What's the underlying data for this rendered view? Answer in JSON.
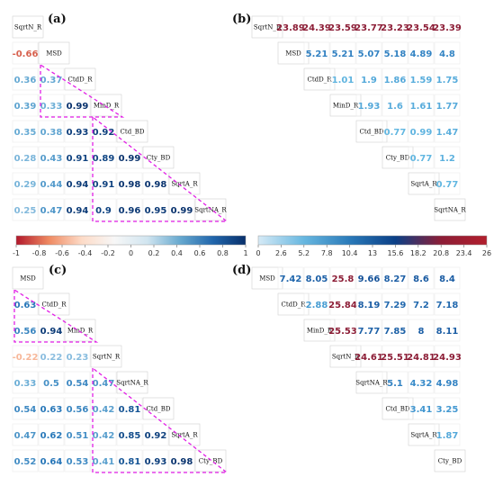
{
  "panels": {
    "a": "(a)",
    "b": "(b)",
    "c": "(c)",
    "d": "(d)"
  },
  "colorbar_left": {
    "ticks": [
      "-1",
      "-0.8",
      "-0.6",
      "-0.4",
      "-0.2",
      "0",
      "0.2",
      "0.4",
      "0.6",
      "0.8",
      "1"
    ],
    "range": [
      -1,
      1
    ],
    "colors": [
      "#b2182b",
      "#ef8a62",
      "#fddbc7",
      "#f7f7f7",
      "#d1e5f0",
      "#67a9cf",
      "#2166ac",
      "#08306b"
    ]
  },
  "colorbar_right": {
    "ticks": [
      "0",
      "2.6",
      "5.2",
      "7.8",
      "10.4",
      "13",
      "15.6",
      "18.2",
      "20.8",
      "23.4",
      "26"
    ],
    "range": [
      0,
      26
    ],
    "colors": [
      "#d6eaf6",
      "#67b7e0",
      "#2a7ab9",
      "#0b3f86",
      "#8c1d36",
      "#b21f2d"
    ]
  },
  "chart_data": [
    {
      "type": "heatmap",
      "panel": "(a)",
      "shape": "lower",
      "variables": [
        "SqrtN_R",
        "MSD",
        "CtdD_R",
        "MinD_R",
        "Ctd_BD",
        "Cty_BD",
        "SqrtA_R",
        "SqrtNA_R"
      ],
      "rows": [
        [],
        [
          "-0.66"
        ],
        [
          "0.36",
          "0.37"
        ],
        [
          "0.39",
          "0.33",
          "0.99"
        ],
        [
          "0.35",
          "0.38",
          "0.93",
          "0.92"
        ],
        [
          "0.28",
          "0.43",
          "0.91",
          "0.89",
          "0.99"
        ],
        [
          "0.29",
          "0.44",
          "0.94",
          "0.91",
          "0.98",
          "0.98"
        ],
        [
          "0.25",
          "0.47",
          "0.94",
          "0.9",
          "0.96",
          "0.95",
          "0.99"
        ]
      ],
      "clusters": [
        [
          2,
          3
        ],
        [
          4,
          7
        ]
      ]
    },
    {
      "type": "heatmap",
      "panel": "(b)",
      "shape": "upper",
      "variables": [
        "SqrtN_R",
        "MSD",
        "CtdD_R",
        "MinD_R",
        "Ctd_BD",
        "Cty_BD",
        "SqrtA_R",
        "SqrtNA_R"
      ],
      "rows": [
        [
          "23.89",
          "24.39",
          "23.59",
          "23.77",
          "23.23",
          "23.54",
          "23.39"
        ],
        [
          "5.21",
          "5.21",
          "5.07",
          "5.18",
          "4.89",
          "4.8"
        ],
        [
          "1.01",
          "1.9",
          "1.86",
          "1.59",
          "1.75"
        ],
        [
          "1.93",
          "1.6",
          "1.61",
          "1.77"
        ],
        [
          "0.77",
          "0.99",
          "1.47"
        ],
        [
          "0.77",
          "1.2"
        ],
        [
          "0.77"
        ],
        []
      ]
    },
    {
      "type": "heatmap",
      "panel": "(c)",
      "shape": "lower",
      "variables": [
        "MSD",
        "CtdD_R",
        "MinD_R",
        "SqrtN_R",
        "SqrtNA_R",
        "Ctd_BD",
        "SqrtA_R",
        "Cty_BD"
      ],
      "rows": [
        [],
        [
          "0.63"
        ],
        [
          "0.56",
          "0.94"
        ],
        [
          "-0.22",
          "0.22",
          "0.23"
        ],
        [
          "0.33",
          "0.5",
          "0.54",
          "0.47"
        ],
        [
          "0.54",
          "0.63",
          "0.56",
          "0.42",
          "0.81"
        ],
        [
          "0.47",
          "0.62",
          "0.51",
          "0.42",
          "0.85",
          "0.92"
        ],
        [
          "0.52",
          "0.64",
          "0.53",
          "0.41",
          "0.81",
          "0.93",
          "0.98"
        ]
      ],
      "clusters": [
        [
          1,
          2
        ],
        [
          4,
          7
        ]
      ]
    },
    {
      "type": "heatmap",
      "panel": "(d)",
      "shape": "upper",
      "variables": [
        "MSD",
        "CtdD_R",
        "MinD_R",
        "SqrtN_R",
        "SqrtNA_R",
        "Ctd_BD",
        "SqrtA_R",
        "Cty_BD"
      ],
      "rows": [
        [
          "7.42",
          "8.05",
          "25.8",
          "9.66",
          "8.27",
          "8.6",
          "8.4"
        ],
        [
          "2.88",
          "25.84",
          "8.19",
          "7.29",
          "7.2",
          "7.18"
        ],
        [
          "25.53",
          "7.77",
          "7.85",
          "8",
          "8.11"
        ],
        [
          "24.61",
          "25.51",
          "24.81",
          "24.93"
        ],
        [
          "5.1",
          "4.32",
          "4.98"
        ],
        [
          "3.41",
          "3.25"
        ],
        [
          "1.87"
        ],
        []
      ]
    }
  ]
}
